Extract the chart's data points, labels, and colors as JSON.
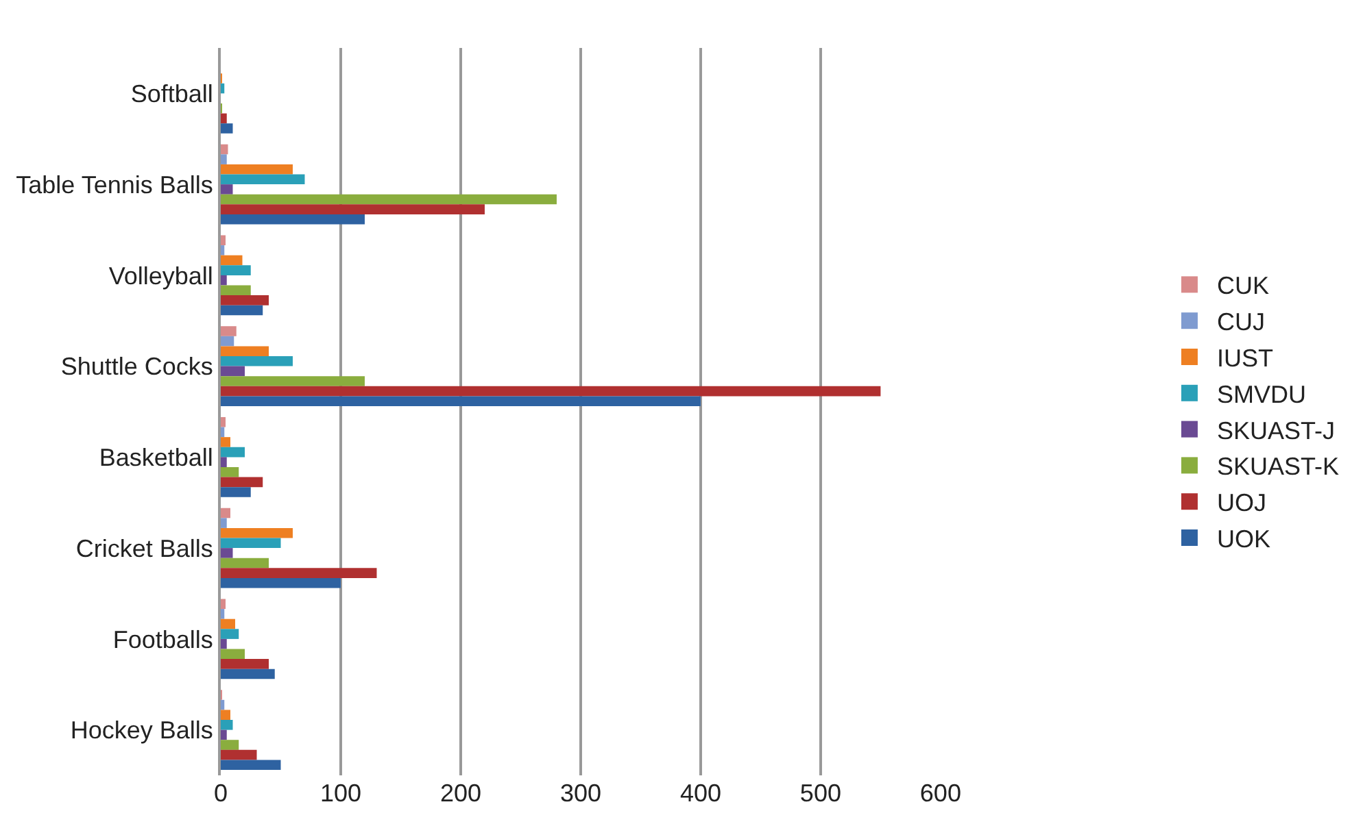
{
  "chart_data": {
    "type": "bar",
    "orientation": "horizontal",
    "categories": [
      "Softball",
      "Table Tennis Balls",
      "Volleyball",
      "Shuttle Cocks",
      "Basketball",
      "Cricket Balls",
      "Footballs",
      "Hockey Balls"
    ],
    "series": [
      {
        "name": "CUK",
        "color": "#d98a8a",
        "values": [
          0,
          6,
          4,
          13,
          4,
          8,
          4,
          1
        ]
      },
      {
        "name": "CUJ",
        "color": "#7f9bd0",
        "values": [
          0,
          5,
          3,
          11,
          3,
          5,
          3,
          3
        ]
      },
      {
        "name": "IUST",
        "color": "#ee7f22",
        "values": [
          1,
          60,
          18,
          40,
          8,
          60,
          12,
          8
        ]
      },
      {
        "name": "SMVDU",
        "color": "#2aa0b8",
        "values": [
          3,
          70,
          25,
          60,
          20,
          50,
          15,
          10
        ]
      },
      {
        "name": "SKUAST-J",
        "color": "#6a4a93",
        "values": [
          0,
          10,
          5,
          20,
          5,
          10,
          5,
          5
        ]
      },
      {
        "name": "SKUAST-K",
        "color": "#8aad3e",
        "values": [
          1,
          280,
          25,
          120,
          15,
          40,
          20,
          15
        ]
      },
      {
        "name": "UOJ",
        "color": "#b03030",
        "values": [
          5,
          220,
          40,
          550,
          35,
          130,
          40,
          30
        ]
      },
      {
        "name": "UOK",
        "color": "#2e62a1",
        "values": [
          10,
          120,
          35,
          400,
          25,
          100,
          45,
          50
        ]
      }
    ],
    "xlim": [
      0,
      600
    ],
    "xticks": [
      0,
      100,
      200,
      300,
      400,
      500,
      600
    ],
    "grid": "x",
    "legend": "right"
  }
}
